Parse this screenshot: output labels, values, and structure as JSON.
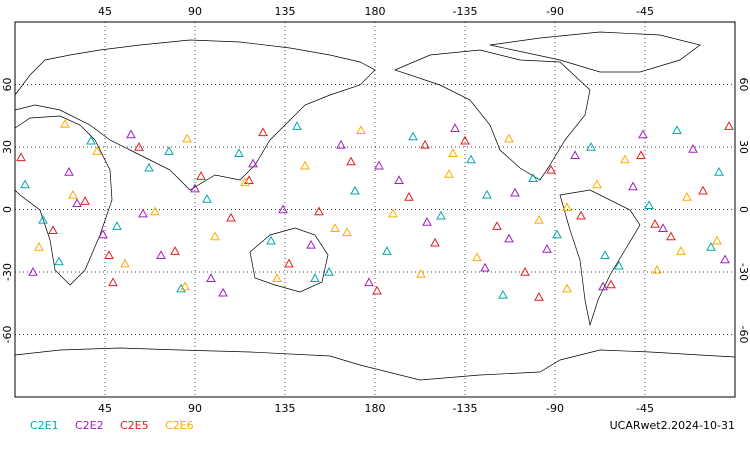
{
  "chart_data": {
    "type": "scatter",
    "marker": "triangle",
    "footer": "UCARwet2.2024-10-31",
    "xlim": [
      0,
      360
    ],
    "ylim": [
      -90,
      90
    ],
    "xticks": [
      45,
      90,
      135,
      180,
      {
        "value": 225,
        "label": "-135"
      },
      {
        "value": 270,
        "label": "-90"
      },
      {
        "value": 315,
        "label": "-45"
      }
    ],
    "yticks": [
      60,
      30,
      0,
      -30,
      -60
    ],
    "grid": true,
    "series": [
      {
        "name": "C2E1",
        "color": "#00a8b0",
        "x": [
          5,
          22,
          38,
          51,
          67,
          83,
          96,
          112,
          128,
          141,
          157,
          170,
          186,
          199,
          213,
          228,
          244,
          259,
          271,
          288,
          302,
          317,
          331,
          348,
          14,
          77,
          150,
          236,
          295,
          352
        ],
        "y": [
          12,
          -25,
          33,
          -8,
          20,
          -38,
          5,
          27,
          -15,
          40,
          -30,
          9,
          -20,
          35,
          -3,
          24,
          -41,
          15,
          -12,
          30,
          -27,
          2,
          38,
          -18,
          -5,
          28,
          -33,
          7,
          -22,
          18
        ]
      },
      {
        "name": "C2E2",
        "color": "#a020c0",
        "x": [
          9,
          27,
          44,
          58,
          73,
          90,
          104,
          119,
          134,
          148,
          163,
          177,
          192,
          206,
          220,
          235,
          250,
          266,
          280,
          294,
          309,
          324,
          339,
          355,
          31,
          98,
          182,
          247,
          314,
          64
        ],
        "y": [
          -30,
          18,
          -12,
          36,
          -22,
          10,
          -40,
          22,
          0,
          -17,
          31,
          -35,
          14,
          -6,
          39,
          -28,
          8,
          -19,
          26,
          -37,
          11,
          -9,
          29,
          -24,
          3,
          -33,
          21,
          -14,
          36,
          -2
        ]
      },
      {
        "name": "C2E5",
        "color": "#e02020",
        "x": [
          3,
          19,
          35,
          49,
          62,
          80,
          93,
          108,
          124,
          137,
          152,
          168,
          181,
          197,
          210,
          225,
          241,
          255,
          268,
          283,
          298,
          313,
          328,
          344,
          47,
          117,
          205,
          262,
          320,
          357
        ],
        "y": [
          25,
          -10,
          4,
          -35,
          30,
          -20,
          16,
          -4,
          37,
          -26,
          -1,
          23,
          -39,
          6,
          -16,
          33,
          -8,
          -30,
          19,
          -3,
          -36,
          26,
          -13,
          9,
          -22,
          14,
          31,
          -42,
          -7,
          40
        ]
      },
      {
        "name": "C2E6",
        "color": "#ffaa00",
        "x": [
          12,
          29,
          41,
          55,
          70,
          86,
          100,
          115,
          131,
          145,
          160,
          173,
          189,
          203,
          217,
          231,
          247,
          262,
          276,
          291,
          305,
          321,
          336,
          351,
          25,
          85,
          166,
          219,
          276,
          333
        ],
        "y": [
          -18,
          7,
          28,
          -26,
          -1,
          34,
          -13,
          13,
          -33,
          21,
          -9,
          38,
          -2,
          -31,
          17,
          -23,
          34,
          -5,
          -38,
          12,
          24,
          -29,
          6,
          -15,
          41,
          -37,
          -11,
          27,
          1,
          -20
        ]
      }
    ]
  }
}
